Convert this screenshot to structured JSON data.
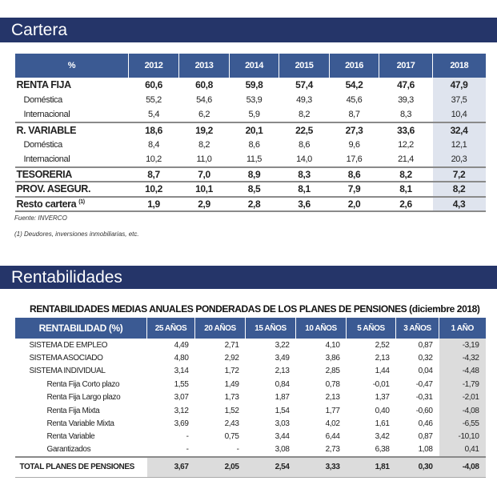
{
  "cartera": {
    "title": "Cartera",
    "header": [
      "%",
      "2012",
      "2013",
      "2014",
      "2015",
      "2016",
      "2017",
      "2018"
    ],
    "rows": [
      {
        "label": "RENTA FIJA",
        "kind": "main",
        "values": [
          "60,6",
          "60,8",
          "59,8",
          "57,4",
          "54,2",
          "47,6",
          "47,9"
        ]
      },
      {
        "label": "Doméstica",
        "kind": "sub",
        "values": [
          "55,2",
          "54,6",
          "53,9",
          "49,3",
          "45,6",
          "39,3",
          "37,5"
        ]
      },
      {
        "label": "Internacional",
        "kind": "sub",
        "values": [
          "5,4",
          "6,2",
          "5,9",
          "8,2",
          "8,7",
          "8,3",
          "10,4"
        ]
      },
      {
        "label": "R. VARIABLE",
        "kind": "main",
        "values": [
          "18,6",
          "19,2",
          "20,1",
          "22,5",
          "27,3",
          "33,6",
          "32,4"
        ]
      },
      {
        "label": "Doméstica",
        "kind": "sub",
        "values": [
          "8,4",
          "8,2",
          "8,6",
          "8,6",
          "9,6",
          "12,2",
          "12,1"
        ]
      },
      {
        "label": "Internacional",
        "kind": "sub",
        "values": [
          "10,2",
          "11,0",
          "11,5",
          "14,0",
          "17,6",
          "21,4",
          "20,3"
        ]
      },
      {
        "label": "TESORERIA",
        "kind": "main",
        "values": [
          "8,7",
          "7,0",
          "8,9",
          "8,3",
          "8,6",
          "8,2",
          "7,2"
        ]
      },
      {
        "label": "PROV. ASEGUR.",
        "kind": "main",
        "values": [
          "10,2",
          "10,1",
          "8,5",
          "8,1",
          "7,9",
          "8,1",
          "8,2"
        ]
      },
      {
        "label": "Resto cartera",
        "sup": "(1)",
        "kind": "main",
        "values": [
          "1,9",
          "2,9",
          "2,8",
          "3,6",
          "2,0",
          "2,6",
          "4,3"
        ]
      }
    ],
    "source": "Fuente: INVERCO",
    "footnote": "(1) Deudores, inversiones inmobiliarias, etc."
  },
  "rentabilidades": {
    "title": "Rentabilidades",
    "table_title": "RENTABILIDADES MEDIAS ANUALES PONDERADAS DE LOS PLANES DE PENSIONES (diciembre 2018)",
    "header": [
      "RENTABILIDAD (%)",
      "25 AÑOS",
      "20 AÑOS",
      "15 AÑOS",
      "10 AÑOS",
      "5 AÑOS",
      "3 AÑOS",
      "1 AÑO"
    ],
    "rows": [
      {
        "label": "SISTEMA DE EMPLEO",
        "kind": "main",
        "values": [
          "4,49",
          "2,71",
          "3,22",
          "4,10",
          "2,52",
          "0,87",
          "-3,19"
        ]
      },
      {
        "label": "SISTEMA ASOCIADO",
        "kind": "main",
        "values": [
          "4,80",
          "2,92",
          "3,49",
          "3,86",
          "2,13",
          "0,32",
          "-4,32"
        ]
      },
      {
        "label": "SISTEMA INDIVIDUAL",
        "kind": "main",
        "values": [
          "3,14",
          "1,72",
          "2,13",
          "2,85",
          "1,44",
          "0,04",
          "-4,48"
        ]
      },
      {
        "label": "Renta Fija Corto plazo",
        "kind": "sub",
        "values": [
          "1,55",
          "1,49",
          "0,84",
          "0,78",
          "-0,01",
          "-0,47",
          "-1,79"
        ]
      },
      {
        "label": "Renta Fija Largo plazo",
        "kind": "sub",
        "values": [
          "3,07",
          "1,73",
          "1,87",
          "2,13",
          "1,37",
          "-0,31",
          "-2,01"
        ]
      },
      {
        "label": "Renta Fija Mixta",
        "kind": "sub",
        "values": [
          "3,12",
          "1,52",
          "1,54",
          "1,77",
          "0,40",
          "-0,60",
          "-4,08"
        ]
      },
      {
        "label": "Renta Variable Mixta",
        "kind": "sub",
        "values": [
          "3,69",
          "2,43",
          "3,03",
          "4,02",
          "1,61",
          "0,46",
          "-6,55"
        ]
      },
      {
        "label": "Renta Variable",
        "kind": "sub",
        "values": [
          "-",
          "0,75",
          "3,44",
          "6,44",
          "3,42",
          "0,87",
          "-10,10"
        ]
      },
      {
        "label": "Garantizados",
        "kind": "sub",
        "values": [
          "-",
          "-",
          "3,08",
          "2,73",
          "6,38",
          "1,08",
          "0,41"
        ]
      }
    ],
    "total": {
      "label": "TOTAL PLANES DE PENSIONES",
      "values": [
        "3,67",
        "2,05",
        "2,54",
        "3,33",
        "1,81",
        "0,30",
        "-4,08"
      ]
    }
  }
}
